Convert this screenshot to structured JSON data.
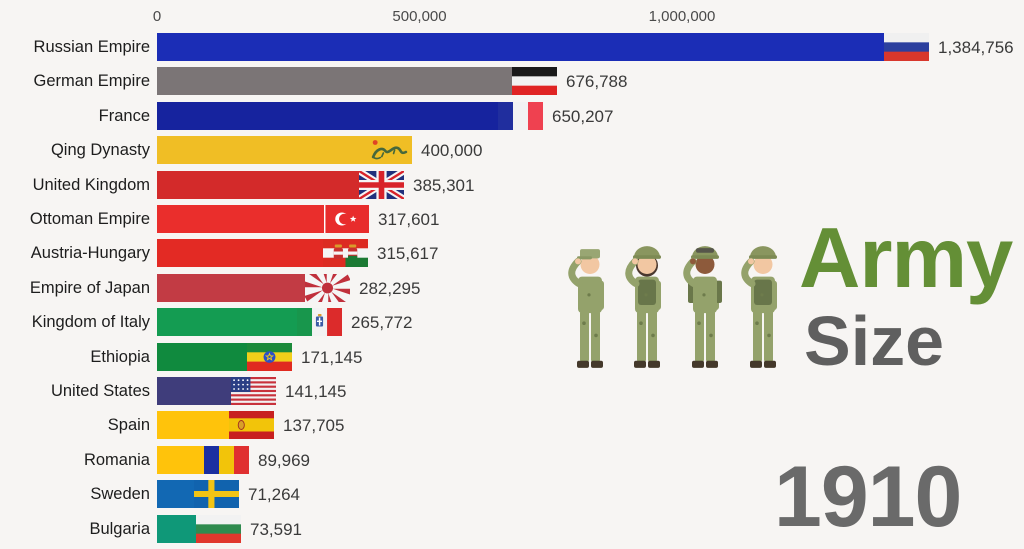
{
  "branding": {
    "army_label": "Army",
    "size_label": "Size",
    "year_label": "1910",
    "army_color": "#648f36",
    "size_color": "#5f5f5f",
    "year_color": "#6a6a6a"
  },
  "chart_data": {
    "type": "bar",
    "orientation": "horizontal",
    "title": "Army Size",
    "subtitle_year": "1910",
    "x_axis": {
      "ticks": [
        0,
        500000,
        1000000
      ],
      "tick_labels": [
        "0",
        "500,000",
        "1,000,000"
      ],
      "range": [
        0,
        1650000
      ],
      "grid": false
    },
    "legend": "none",
    "categories": [
      "Russian Empire",
      "German Empire",
      "France",
      "Qing Dynasty",
      "United Kingdom",
      "Ottoman Empire",
      "Austria-Hungary",
      "Empire of Japan",
      "Kingdom of Italy",
      "Ethiopia",
      "United States",
      "Spain",
      "Romania",
      "Sweden",
      "Bulgaria"
    ],
    "values": [
      1384756,
      676788,
      650207,
      400000,
      385301,
      317601,
      315617,
      282295,
      265772,
      171145,
      141145,
      137705,
      89969,
      71264,
      73591
    ],
    "value_labels": [
      "1,384,756",
      "676,788",
      "650,207",
      "400,000",
      "385,301",
      "317,601",
      "315,617",
      "282,295",
      "265,772",
      "171,145",
      "141,145",
      "137,705",
      "89,969",
      "71,264",
      "73,591"
    ],
    "bar_colors": [
      "#1b2db6",
      "#7b7576",
      "#16239e",
      "#f0be25",
      "#d32a2a",
      "#ea2e2c",
      "#e32a24",
      "#c23b44",
      "#149c52",
      "#108a3e",
      "#3f3d7b",
      "#ffc30b",
      "#ffc30b",
      "#1268b3",
      "#0f9878"
    ],
    "flags": [
      {
        "code": "russian-empire",
        "type": "hstripes",
        "colors": [
          "#f0f0f0",
          "#2b3f9e",
          "#d8372c"
        ]
      },
      {
        "code": "german-empire",
        "type": "hstripes",
        "colors": [
          "#1a1a1a",
          "#f2f2f2",
          "#e02424"
        ]
      },
      {
        "code": "france",
        "type": "vstripes",
        "colors": [
          "#202e9e",
          "#f2f2f2",
          "#ef4150"
        ]
      },
      {
        "code": "qing-dynasty",
        "type": "qing",
        "colors": {
          "field": "#f0be25",
          "dragon": "#47683b",
          "sun": "#e04424"
        }
      },
      {
        "code": "united-kingdom",
        "type": "uk",
        "colors": {
          "field": "#20307c",
          "cross": "#d8232a",
          "white": "#f5f5f5"
        }
      },
      {
        "code": "ottoman-empire",
        "type": "crescent",
        "colors": {
          "field": "#e82c2c",
          "fg": "#ffffff"
        }
      },
      {
        "code": "austria-hungary",
        "type": "austria-hungary",
        "colors": {
          "red": "#dc2b22",
          "white": "#f5f5f5",
          "green": "#1c7a34",
          "gold": "#d99a2b",
          "shield": "#c83030"
        }
      },
      {
        "code": "empire-of-japan",
        "type": "rising-sun",
        "colors": {
          "field": "#f5f5f5",
          "sun": "#c0303c"
        }
      },
      {
        "code": "kingdom-of-italy",
        "type": "italy",
        "colors": {
          "green": "#18964c",
          "white": "#f2f2f2",
          "red": "#dc2b2b",
          "crest": "#3b5ba5",
          "gold": "#d99a2b"
        }
      },
      {
        "code": "ethiopia",
        "type": "ethiopia",
        "colors": {
          "green": "#1c8a3a",
          "yellow": "#f2cf1a",
          "red": "#e02a20",
          "disc": "#2b4fc8"
        }
      },
      {
        "code": "united-states",
        "type": "usa",
        "colors": {
          "canton": "#2b3f85",
          "red": "#c8323c",
          "white": "#f2f2f2"
        }
      },
      {
        "code": "spain",
        "type": "spain",
        "colors": {
          "red": "#c82020",
          "yellow": "#f2c40a",
          "gold": "#d8a02a",
          "outline": "#a03020"
        }
      },
      {
        "code": "romania",
        "type": "vstripes",
        "colors": [
          "#1b2fa0",
          "#f2c40a",
          "#e03030"
        ]
      },
      {
        "code": "sweden",
        "type": "nordic-cross",
        "colors": {
          "field": "#1163ae",
          "cross": "#f2c414"
        }
      },
      {
        "code": "bulgaria",
        "type": "hstripes",
        "colors": [
          "#f2f2f2",
          "#2f8b4f",
          "#e0372c"
        ]
      }
    ]
  }
}
